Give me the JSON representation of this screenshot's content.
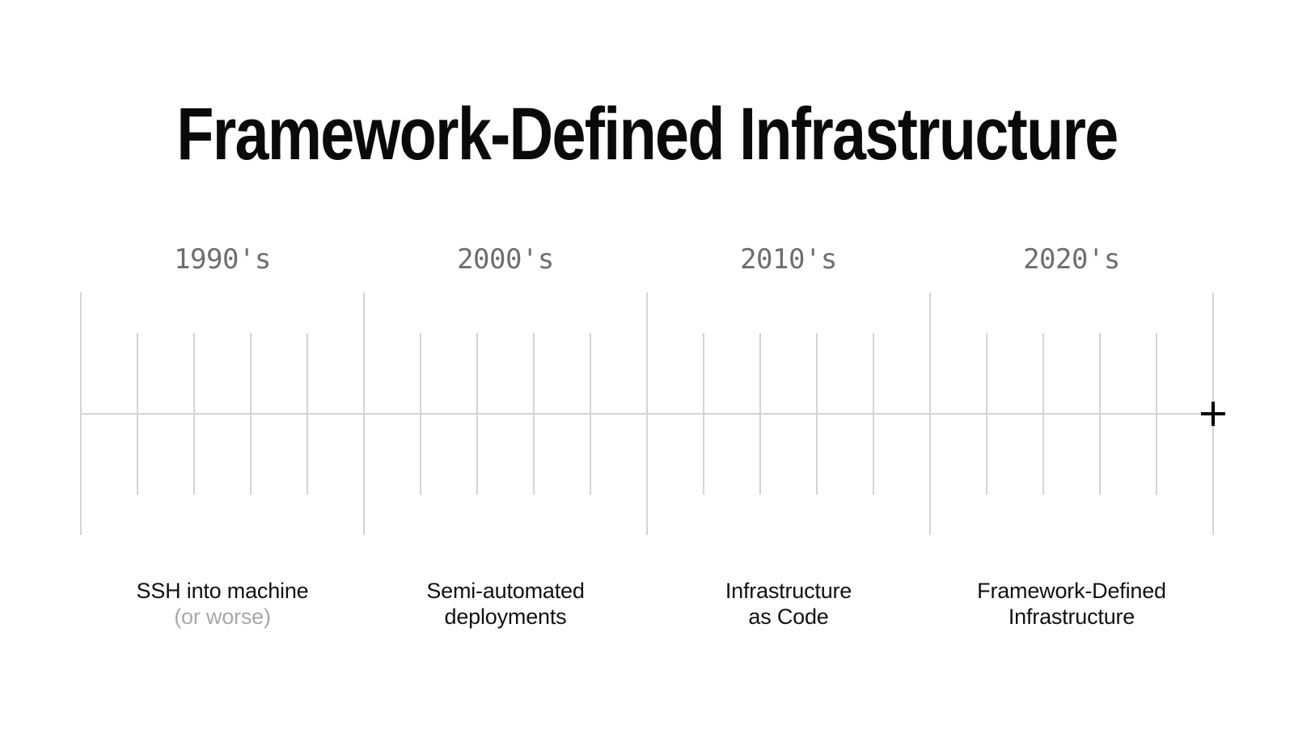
{
  "title": "Framework-Defined Infrastructure",
  "timeline": {
    "decades": [
      {
        "decade_label": "1990's",
        "caption_line1": "SSH into machine",
        "caption_line2": "(or worse)"
      },
      {
        "decade_label": "2000's",
        "caption_line1": "Semi-automated",
        "caption_line2": "deployments"
      },
      {
        "decade_label": "2010's",
        "caption_line1": "Infrastructure",
        "caption_line2": "as Code"
      },
      {
        "decade_label": "2020's",
        "caption_line1": "Framework-Defined",
        "caption_line2": "Infrastructure"
      }
    ],
    "minor_ticks_per_decade": 4,
    "end_marker": "plus-cross"
  },
  "colors": {
    "background": "#ffffff",
    "title": "#0a0a0a",
    "line": "#d4d4d4",
    "decade_label": "#6e6e6e",
    "caption": "#111111",
    "caption_muted": "#a8a8a8",
    "marker": "#000000"
  }
}
